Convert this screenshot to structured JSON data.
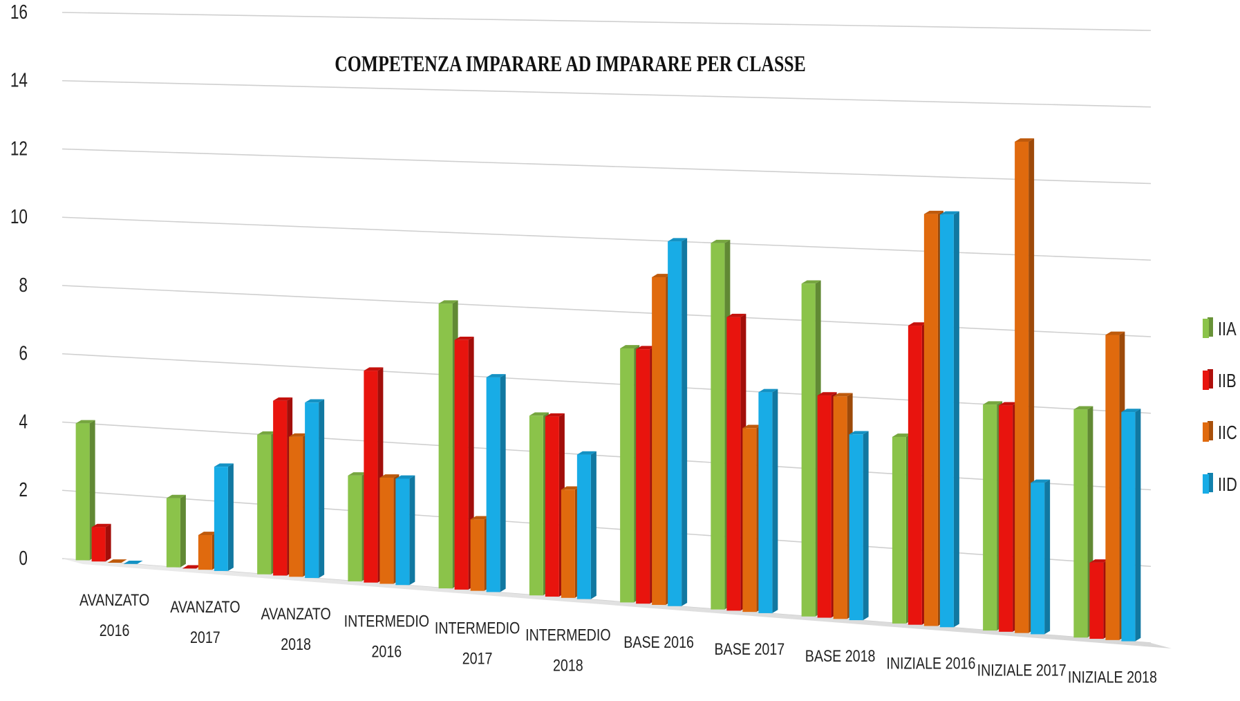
{
  "chart_data": {
    "type": "bar",
    "title": "COMPETENZA IMPARARE AD IMPARARE PER CLASSE",
    "xlabel": "",
    "ylabel": "",
    "ylim": [
      0,
      16
    ],
    "yticks": [
      "0",
      "2",
      "4",
      "6",
      "8",
      "10",
      "12",
      "14",
      "16"
    ],
    "grid": true,
    "legend_position": "right",
    "categories": [
      [
        "AVANZATO",
        "2016"
      ],
      [
        "AVANZATO",
        "2017"
      ],
      [
        "AVANZATO",
        "2018"
      ],
      [
        "INTERMEDIO",
        "2016"
      ],
      [
        "INTERMEDIO",
        "2017"
      ],
      [
        "INTERMEDIO",
        "2018"
      ],
      [
        "BASE 2016"
      ],
      [
        "BASE 2017"
      ],
      [
        "BASE 2018"
      ],
      [
        "INIZIALE 2016"
      ],
      [
        "INIZIALE 2017"
      ],
      [
        "INIZIALE 2018"
      ]
    ],
    "series": [
      {
        "name": "IIA",
        "color": "#8BC34A",
        "values": [
          4,
          2,
          4,
          3,
          8,
          5,
          7,
          10,
          9,
          5,
          6,
          6
        ]
      },
      {
        "name": "IIB",
        "color": "#E8140E",
        "values": [
          1,
          0,
          5,
          6,
          7,
          5,
          7,
          8,
          6,
          8,
          6,
          2
        ]
      },
      {
        "name": "IIC",
        "color": "#E06A0E",
        "values": [
          0,
          1,
          4,
          3,
          2,
          3,
          9,
          5,
          6,
          11,
          13,
          8
        ]
      },
      {
        "name": "IID",
        "color": "#18ACE6",
        "values": [
          0,
          3,
          5,
          3,
          6,
          4,
          10,
          6,
          5,
          11,
          4,
          6
        ]
      }
    ]
  }
}
